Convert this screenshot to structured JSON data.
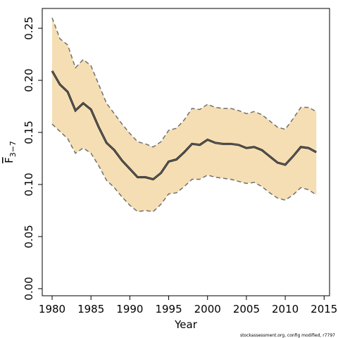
{
  "chart_data": {
    "type": "line",
    "x_label": "Year",
    "y_label": {
      "base": "F",
      "sub": "3−7"
    },
    "footnote": "stockassessment.org, config modified, r7797",
    "x": [
      1980,
      1981,
      1982,
      1983,
      1984,
      1985,
      1986,
      1987,
      1988,
      1989,
      1990,
      1991,
      1992,
      1993,
      1994,
      1995,
      1996,
      1997,
      1998,
      1999,
      2000,
      2001,
      2002,
      2003,
      2004,
      2005,
      2006,
      2007,
      2008,
      2009,
      2010,
      2011,
      2012,
      2013,
      2014
    ],
    "values": [
      0.209,
      0.196,
      0.189,
      0.171,
      0.178,
      0.172,
      0.155,
      0.14,
      0.133,
      0.123,
      0.115,
      0.107,
      0.107,
      0.105,
      0.111,
      0.122,
      0.124,
      0.131,
      0.139,
      0.138,
      0.143,
      0.14,
      0.139,
      0.139,
      0.138,
      0.135,
      0.136,
      0.133,
      0.127,
      0.121,
      0.119,
      0.127,
      0.136,
      0.135,
      0.131
    ],
    "upper": [
      0.26,
      0.24,
      0.234,
      0.212,
      0.22,
      0.214,
      0.196,
      0.178,
      0.168,
      0.158,
      0.149,
      0.141,
      0.139,
      0.136,
      0.141,
      0.152,
      0.154,
      0.162,
      0.173,
      0.172,
      0.177,
      0.174,
      0.173,
      0.173,
      0.171,
      0.168,
      0.17,
      0.167,
      0.161,
      0.155,
      0.153,
      0.163,
      0.174,
      0.174,
      0.17
    ],
    "lower": [
      0.158,
      0.151,
      0.144,
      0.13,
      0.135,
      0.13,
      0.118,
      0.104,
      0.097,
      0.088,
      0.08,
      0.074,
      0.075,
      0.074,
      0.081,
      0.091,
      0.092,
      0.098,
      0.105,
      0.105,
      0.109,
      0.107,
      0.106,
      0.105,
      0.103,
      0.101,
      0.102,
      0.098,
      0.092,
      0.087,
      0.085,
      0.09,
      0.097,
      0.095,
      0.09
    ],
    "color": "#222222",
    "band_color": "#f5deb3",
    "bound_color": "#707070",
    "xlim": [
      1978.73,
      2015.7
    ],
    "ylim": [
      -0.0068,
      0.269
    ],
    "xticks": [
      1980,
      1985,
      1990,
      1995,
      2000,
      2005,
      2010,
      2015
    ],
    "yticks": [
      {
        "value": 0,
        "label": "0.00"
      },
      0.05,
      {
        "value": 0.1,
        "label": "0.10"
      },
      0.15,
      {
        "value": 0.2,
        "label": "0.20"
      },
      0.25
    ]
  }
}
